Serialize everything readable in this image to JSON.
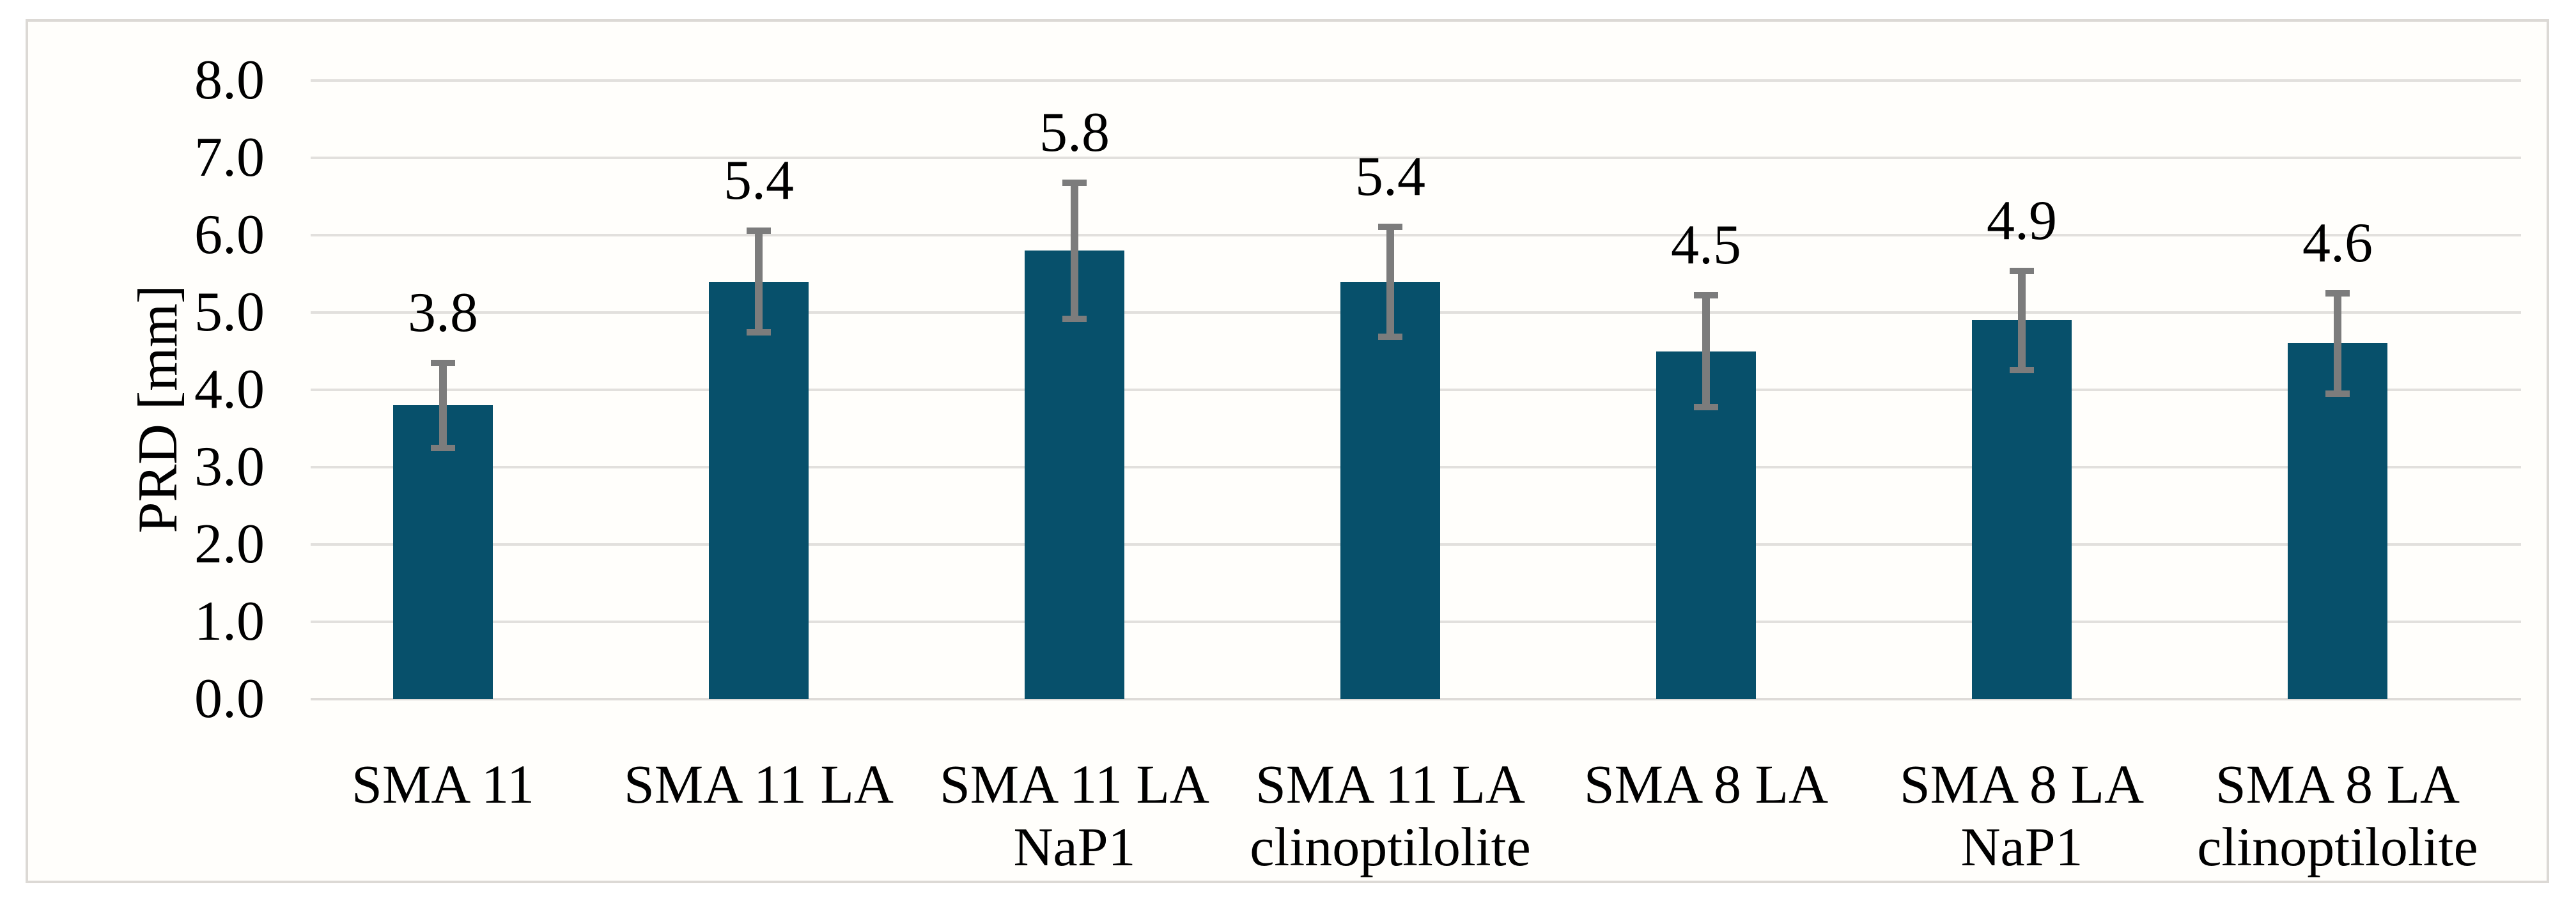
{
  "chart_data": {
    "type": "bar",
    "title": "",
    "xlabel": "",
    "ylabel": "PRD [mm]",
    "ylim": [
      0,
      8
    ],
    "ytick_step": 1.0,
    "ytick_labels": [
      "0.0",
      "1.0",
      "2.0",
      "3.0",
      "4.0",
      "5.0",
      "6.0",
      "7.0",
      "8.0"
    ],
    "grid": true,
    "legend_position": "none",
    "categories": [
      "SMA 11",
      "SMA 11 LA",
      "SMA 11 LA NaP1",
      "SMA 11 LA clinoptilolite",
      "SMA 8 LA",
      "SMA 8 LA NaP1",
      "SMA 8 LA clinoptilolite"
    ],
    "category_label_lines": [
      [
        "SMA 11"
      ],
      [
        "SMA 11 LA"
      ],
      [
        "SMA 11 LA",
        "NaP1"
      ],
      [
        "SMA 11 LA",
        "clinoptilolite"
      ],
      [
        "SMA 8 LA"
      ],
      [
        "SMA 8 LA",
        "NaP1"
      ],
      [
        "SMA 8 LA",
        "clinoptilolite"
      ]
    ],
    "values": [
      3.8,
      5.4,
      5.8,
      5.4,
      4.5,
      4.9,
      4.6
    ],
    "data_labels": [
      "3.8",
      "5.4",
      "5.8",
      "5.4",
      "4.5",
      "4.9",
      "4.6"
    ],
    "error_bars": [
      0.55,
      0.66,
      0.88,
      0.71,
      0.72,
      0.64,
      0.65
    ],
    "colors": {
      "bar": "#07506b",
      "error_bar": "#7c7c7c",
      "gridline": "#e2e0dd",
      "axis_line": "#dedbd8",
      "frame_border": "#dcd9d5",
      "panel_background": "#fffefb",
      "text": "#000000"
    }
  }
}
